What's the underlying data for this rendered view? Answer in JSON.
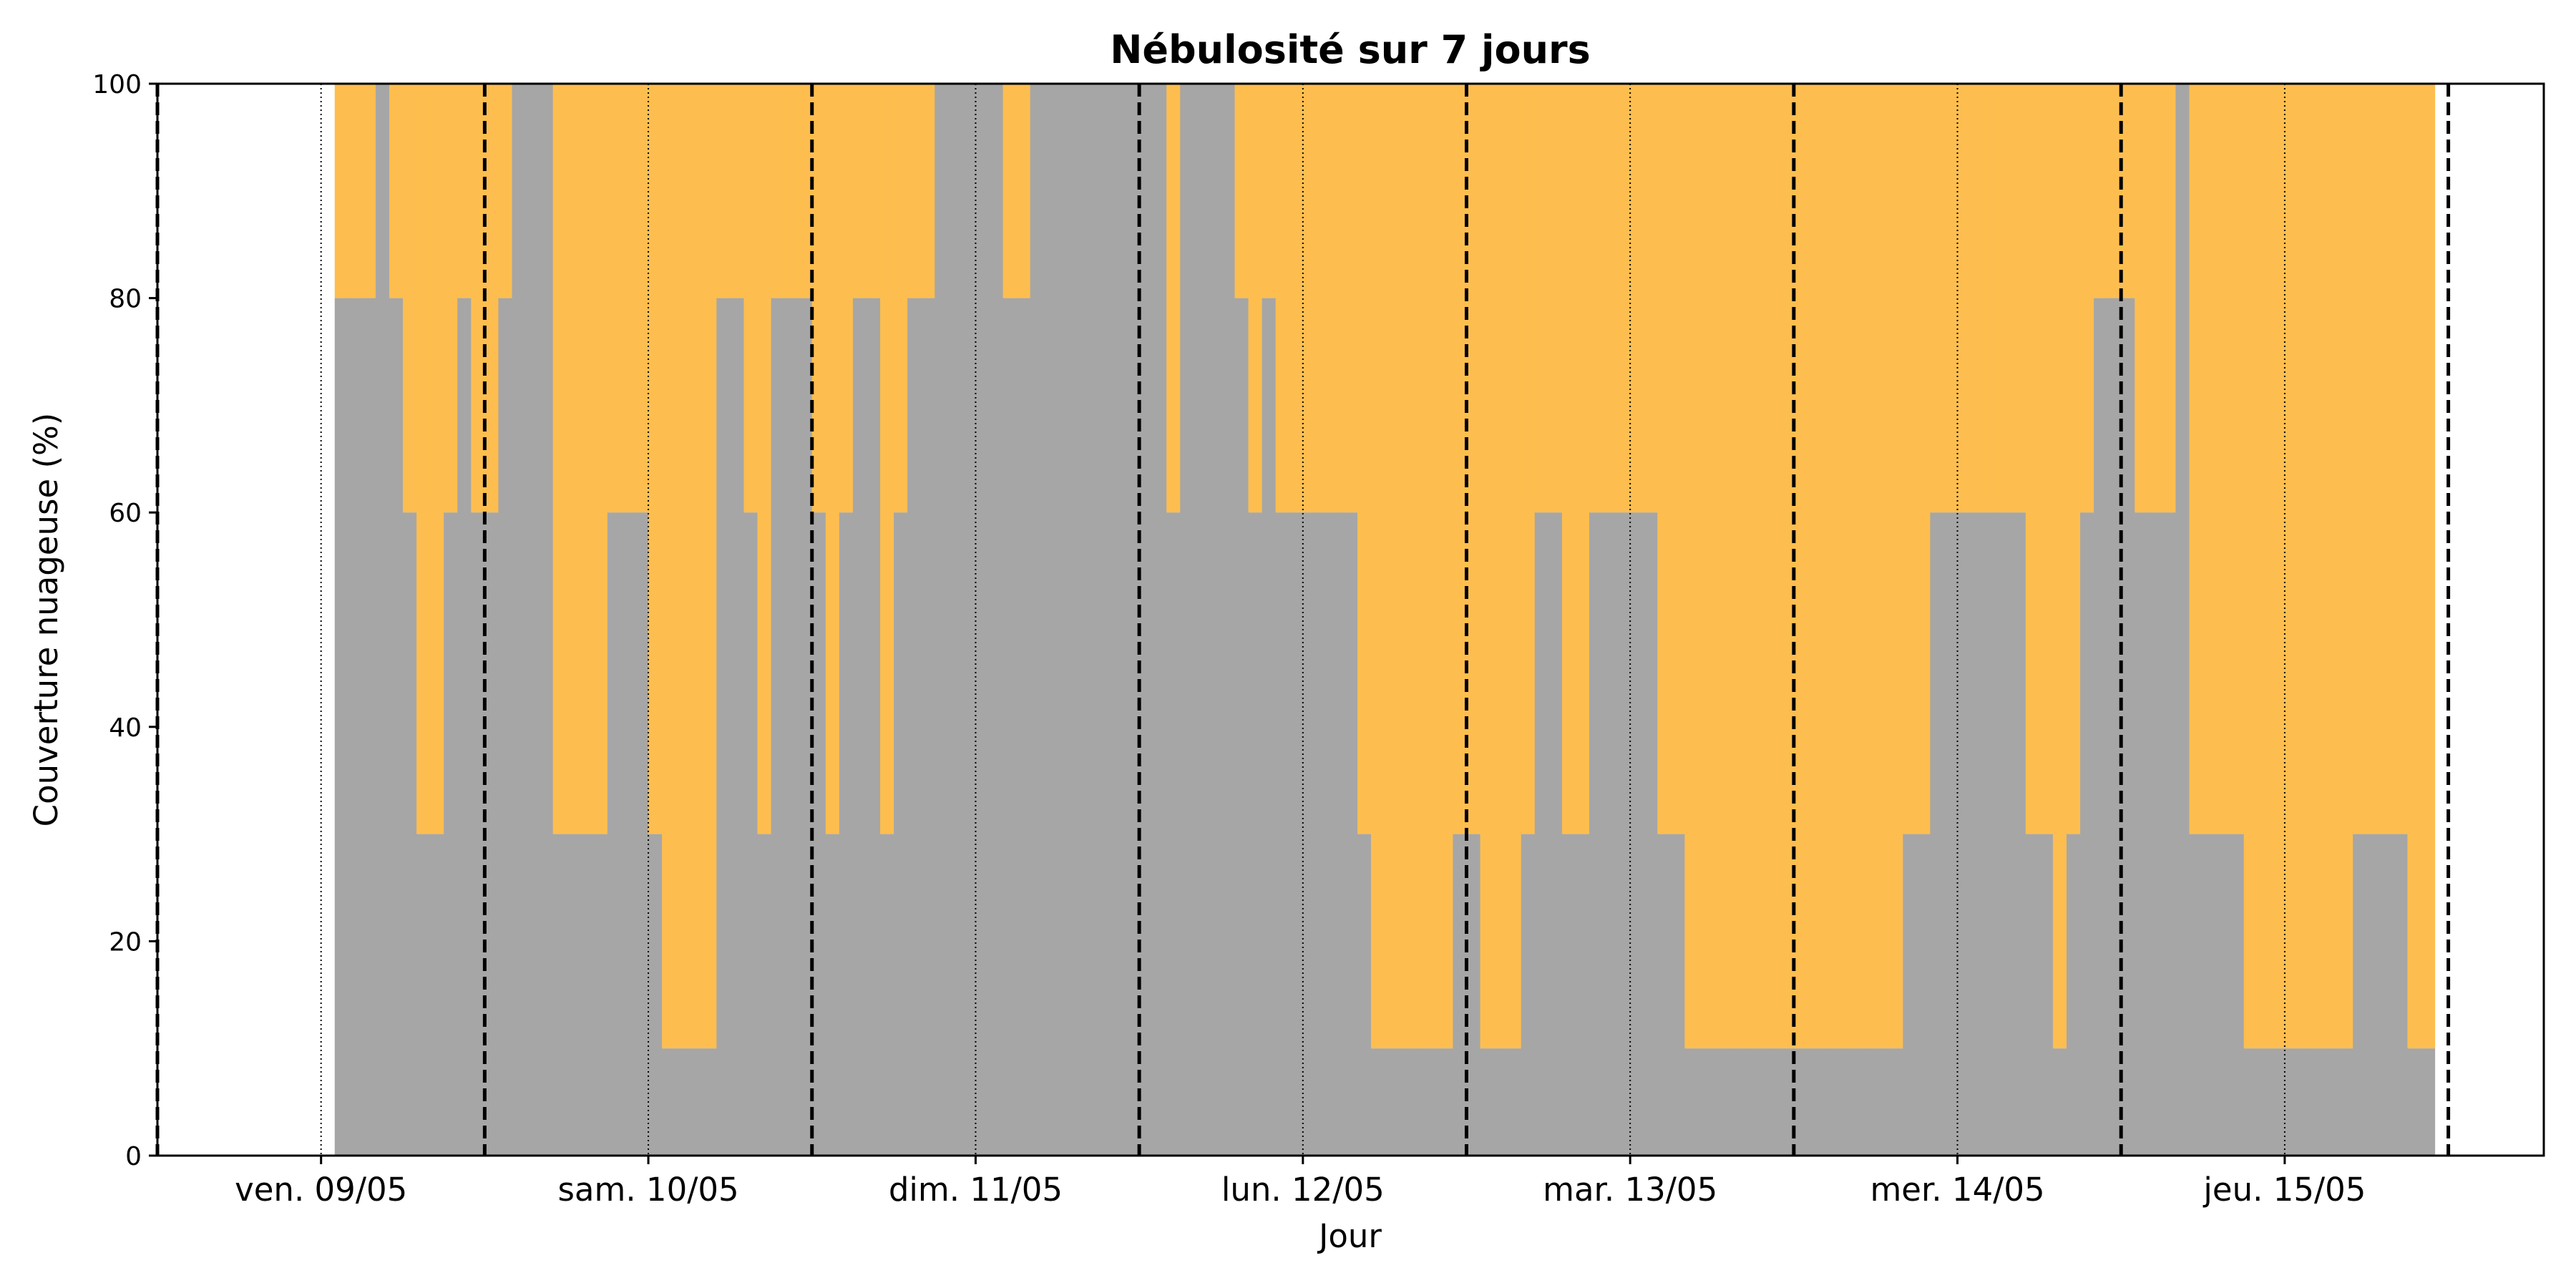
{
  "chart_data": {
    "type": "area",
    "title": "Nébulosité sur 7 jours",
    "xlabel": "Jour",
    "ylabel": "Couverture nuageuse (%)",
    "ylim": [
      0,
      100
    ],
    "yticks": [
      0,
      20,
      40,
      60,
      80,
      100
    ],
    "xlim": [
      "2025-05-08T12:00",
      "2025-05-15T19:00"
    ],
    "day_ticks": [
      {
        "label": "ven. 09/05",
        "at": "2025-05-09T00:00"
      },
      {
        "label": "sam. 10/05",
        "at": "2025-05-10T00:00"
      },
      {
        "label": "dim. 11/05",
        "at": "2025-05-11T00:00"
      },
      {
        "label": "lun. 12/05",
        "at": "2025-05-12T00:00"
      },
      {
        "label": "mar. 13/05",
        "at": "2025-05-13T00:00"
      },
      {
        "label": "mer. 14/05",
        "at": "2025-05-14T00:00"
      },
      {
        "label": "jeu. 15/05",
        "at": "2025-05-15T00:00"
      }
    ],
    "noon_lines": [
      "2025-05-08T12:00",
      "2025-05-09T12:00",
      "2025-05-10T12:00",
      "2025-05-11T12:00",
      "2025-05-12T12:00",
      "2025-05-13T12:00",
      "2025-05-14T12:00",
      "2025-05-15T12:00"
    ],
    "data_start": "2025-05-09T01:00",
    "step_hours": 1,
    "colors": {
      "cloud": "#a6a6a6",
      "clear": "#fdbe4f",
      "frame": "#000000"
    },
    "series": [
      {
        "values": [
          80,
          80,
          80,
          100,
          80,
          60,
          30,
          30,
          60,
          80,
          60,
          60,
          80,
          100,
          100,
          100,
          30,
          30,
          30,
          30,
          60,
          60,
          60,
          30,
          10,
          10,
          10,
          10,
          80,
          80,
          60,
          30,
          80,
          80,
          80,
          60,
          30,
          60,
          80,
          80,
          30,
          60,
          80,
          80,
          100,
          100,
          100,
          100,
          100,
          80,
          80,
          100,
          100,
          100,
          100,
          100,
          100,
          100,
          100,
          100,
          100,
          60,
          100,
          100,
          100,
          100,
          80,
          60,
          80,
          60,
          60,
          60,
          60,
          60,
          60,
          30,
          10,
          10,
          10,
          10,
          10,
          10,
          30,
          30,
          10,
          10,
          10,
          30,
          60,
          60,
          30,
          30,
          60,
          60,
          60,
          60,
          60,
          30,
          30,
          10,
          10,
          10,
          10,
          10,
          10,
          10,
          10,
          10,
          10,
          10,
          10,
          10,
          10,
          10,
          10,
          30,
          30,
          60,
          60,
          60,
          60,
          60,
          60,
          60,
          30,
          30,
          10,
          30,
          60,
          80,
          80,
          80,
          60,
          60,
          60,
          100,
          30,
          30,
          30,
          30,
          10,
          10,
          10,
          10,
          10,
          10,
          10,
          10,
          30,
          30,
          30,
          30,
          10,
          10
        ]
      }
    ]
  }
}
